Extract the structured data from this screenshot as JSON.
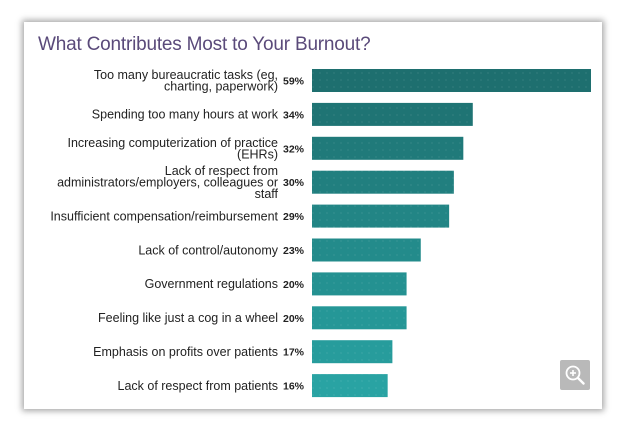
{
  "chart_data": {
    "type": "bar",
    "orientation": "horizontal",
    "title": "What Contributes Most to Your Burnout?",
    "categories": [
      [
        "Too many bureaucratic tasks (eg,",
        "charting, paperwork)"
      ],
      [
        "Spending too many hours at work"
      ],
      [
        "Increasing computerization of practice",
        "(EHRs)"
      ],
      [
        "Lack of respect from",
        "administrators/employers, colleagues or",
        "staff"
      ],
      [
        "Insufficient compensation/reimbursement"
      ],
      [
        "Lack of control/autonomy"
      ],
      [
        "Government regulations"
      ],
      [
        "Feeling like just a cog in a wheel"
      ],
      [
        "Emphasis on profits over patients"
      ],
      [
        "Lack of respect from patients"
      ]
    ],
    "values": [
      59,
      34,
      32,
      30,
      29,
      23,
      20,
      20,
      17,
      16
    ],
    "value_labels": [
      "59%",
      "34%",
      "32%",
      "30%",
      "29%",
      "23%",
      "20%",
      "20%",
      "17%",
      "16%"
    ],
    "xlim": [
      0,
      59
    ],
    "grid": false,
    "colors": [
      "#1e6f6f",
      "#1f7474",
      "#207a7a",
      "#217f7f",
      "#228585",
      "#238b8b",
      "#249191",
      "#259797",
      "#279c9c",
      "#29a3a3"
    ]
  },
  "zoom_icon": "zoom-in-icon"
}
